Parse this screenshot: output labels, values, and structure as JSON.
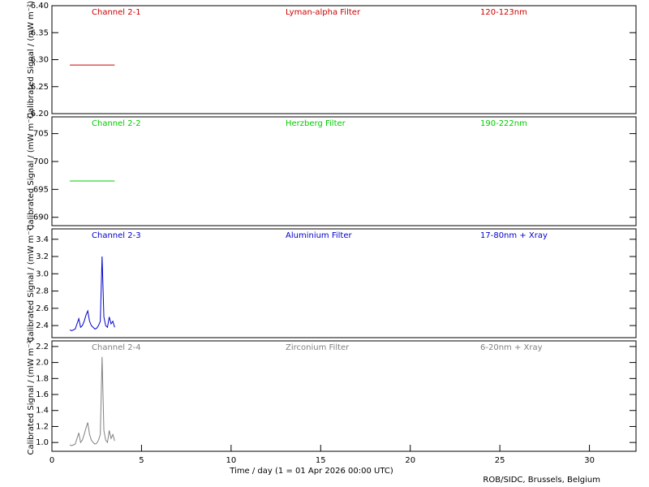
{
  "chart_data": [
    {
      "type": "line",
      "annotations": [
        "Channel 2-1",
        "Lyman-alpha Filter",
        "120-123nm"
      ],
      "y_label": "Calibrated Signal / (mW m⁻²)",
      "color": "#cc0000",
      "xlim": [
        0,
        32.6
      ],
      "ylim": [
        6.2,
        6.4
      ],
      "yticks": [
        {
          "value": 6.2,
          "label": "6.20"
        },
        {
          "value": 6.25,
          "label": "6.25"
        },
        {
          "value": 6.3,
          "label": "6.30"
        },
        {
          "value": 6.35,
          "label": "6.35"
        },
        {
          "value": 6.4,
          "label": "6.40"
        }
      ],
      "x": [
        1.0,
        1.1,
        1.2,
        1.3,
        1.4,
        1.5,
        1.6,
        1.7,
        1.8,
        1.9,
        2.0,
        2.1,
        2.2,
        2.3,
        2.4,
        2.5,
        2.6,
        2.7,
        2.8,
        2.9,
        3.0,
        3.1,
        3.2,
        3.3,
        3.4,
        3.5
      ],
      "values": [
        6.29,
        6.29,
        6.29,
        6.29,
        6.29,
        6.29,
        6.29,
        6.29,
        6.29,
        6.29,
        6.29,
        6.29,
        6.29,
        6.29,
        6.29,
        6.29,
        6.29,
        6.29,
        6.29,
        6.29,
        6.29,
        6.29,
        6.29,
        6.29,
        6.29,
        6.29
      ]
    },
    {
      "type": "line",
      "annotations": [
        "Channel 2-2",
        "Herzberg Filter",
        "190-222nm"
      ],
      "y_label": "Calibrated Signal / (mW m⁻²)",
      "color": "#00cc00",
      "xlim": [
        0,
        32.6
      ],
      "ylim": [
        688.5,
        708
      ],
      "yticks": [
        690,
        695,
        700,
        705
      ],
      "x": [
        1.0,
        1.1,
        1.2,
        1.3,
        1.4,
        1.5,
        1.6,
        1.7,
        1.8,
        1.9,
        2.0,
        2.1,
        2.2,
        2.3,
        2.4,
        2.5,
        2.6,
        2.7,
        2.8,
        2.9,
        3.0,
        3.1,
        3.2,
        3.3,
        3.4,
        3.5
      ],
      "values": [
        696.5,
        696.5,
        696.5,
        696.5,
        696.5,
        696.5,
        696.5,
        696.5,
        696.5,
        696.5,
        696.5,
        696.5,
        696.5,
        696.5,
        696.5,
        696.5,
        696.5,
        696.5,
        696.5,
        696.5,
        696.5,
        696.5,
        696.5,
        696.5,
        696.5,
        696.5
      ]
    },
    {
      "type": "line",
      "annotations": [
        "Channel 2-3",
        "Aluminium Filter",
        "17-80nm + Xray"
      ],
      "y_label": "Calibrated Signal / (mW m⁻²)",
      "color": "#0000cc",
      "xlim": [
        0,
        32.6
      ],
      "ylim": [
        2.26,
        3.52
      ],
      "yticks": [
        2.4,
        2.6,
        2.8,
        {
          "value": 3.0,
          "label": "3.0"
        },
        3.2,
        3.4
      ],
      "x": [
        1.0,
        1.1,
        1.2,
        1.3,
        1.4,
        1.5,
        1.6,
        1.7,
        1.8,
        1.9,
        2.0,
        2.1,
        2.2,
        2.3,
        2.4,
        2.5,
        2.6,
        2.7,
        2.8,
        2.9,
        3.0,
        3.1,
        3.2,
        3.3,
        3.4,
        3.5
      ],
      "values": [
        2.35,
        2.34,
        2.35,
        2.36,
        2.42,
        2.48,
        2.38,
        2.4,
        2.45,
        2.52,
        2.57,
        2.45,
        2.4,
        2.38,
        2.36,
        2.37,
        2.4,
        2.45,
        3.2,
        2.5,
        2.4,
        2.38,
        2.5,
        2.42,
        2.45,
        2.38
      ]
    },
    {
      "type": "line",
      "annotations": [
        "Channel 2-4",
        "Zirconium Filter",
        "6-20nm + Xray"
      ],
      "y_label": "Calibrated Signal / (mW m⁻²)",
      "color": "#808080",
      "xlim": [
        0,
        32.6
      ],
      "ylim": [
        0.89,
        2.27
      ],
      "yticks": [
        {
          "value": 1.0,
          "label": "1.0"
        },
        1.2,
        1.4,
        1.6,
        1.8,
        {
          "value": 2.0,
          "label": "2.0"
        },
        2.2
      ],
      "xticks": [
        0,
        5,
        10,
        15,
        20,
        25,
        30
      ],
      "x_label": "Time / day (1 = 01 Apr 2026 00:00 UTC)",
      "x": [
        1.0,
        1.1,
        1.2,
        1.3,
        1.4,
        1.5,
        1.6,
        1.7,
        1.8,
        1.9,
        2.0,
        2.1,
        2.2,
        2.3,
        2.4,
        2.5,
        2.6,
        2.7,
        2.8,
        2.9,
        3.0,
        3.1,
        3.2,
        3.3,
        3.4,
        3.5
      ],
      "values": [
        0.97,
        0.96,
        0.97,
        0.98,
        1.05,
        1.12,
        1.0,
        1.03,
        1.1,
        1.18,
        1.25,
        1.1,
        1.03,
        1.0,
        0.98,
        0.99,
        1.03,
        1.1,
        2.07,
        1.15,
        1.03,
        1.0,
        1.15,
        1.05,
        1.1,
        1.02
      ]
    }
  ],
  "credit": "ROB/SIDC, Brussels, Belgium"
}
